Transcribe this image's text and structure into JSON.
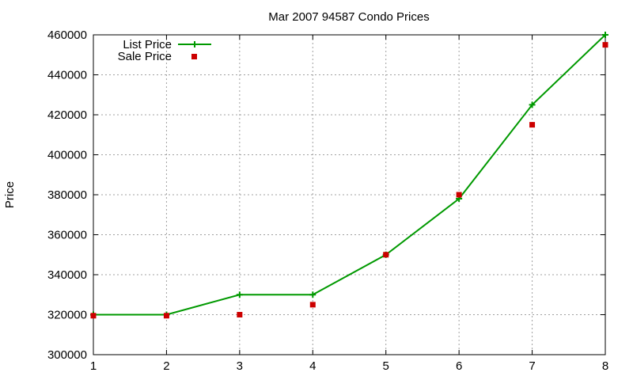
{
  "chart_data": {
    "type": "line",
    "title": "Mar 2007 94587 Condo Prices",
    "xlabel": "",
    "ylabel": "Price",
    "xlim": [
      1,
      8
    ],
    "ylim": [
      300000,
      460000
    ],
    "x_ticks": [
      1,
      2,
      3,
      4,
      5,
      6,
      7,
      8
    ],
    "y_ticks": [
      300000,
      320000,
      340000,
      360000,
      380000,
      400000,
      420000,
      440000,
      460000
    ],
    "grid": true,
    "legend_position": "top-left",
    "series": [
      {
        "name": "List Price",
        "style": "linespoints",
        "marker": "plus",
        "color": "#009900",
        "x": [
          1,
          2,
          3,
          4,
          5,
          6,
          7,
          8
        ],
        "y": [
          320000,
          320000,
          330000,
          330000,
          350000,
          378000,
          425000,
          460000
        ]
      },
      {
        "name": "Sale Price",
        "style": "points",
        "marker": "square",
        "color": "#cc0000",
        "x": [
          1,
          2,
          3,
          4,
          5,
          6,
          7,
          8
        ],
        "y": [
          319500,
          319500,
          320000,
          325000,
          350000,
          380000,
          415000,
          455000
        ]
      }
    ]
  }
}
